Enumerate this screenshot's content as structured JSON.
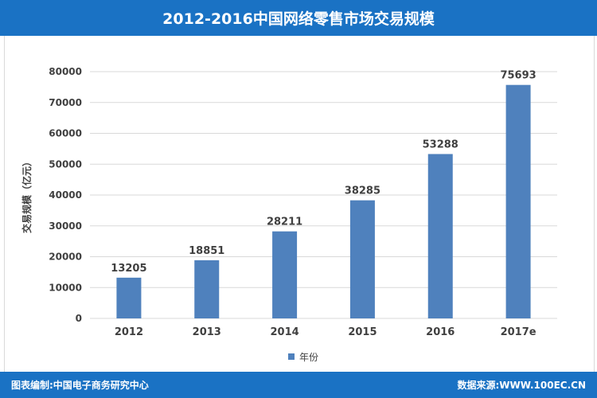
{
  "header": {
    "title": "2012-2016中国网络零售市场交易规模"
  },
  "footer": {
    "left": "图表编制:中国电子商务研究中心",
    "right": "数据来源:WWW.100EC.CN"
  },
  "colors": {
    "bar": "#4f81bd",
    "header": "#1a72c4",
    "grid": "#d9d9d9"
  },
  "chart_data": {
    "type": "bar",
    "title": "2012-2016中国网络零售市场交易规模",
    "categories": [
      "2012",
      "2013",
      "2014",
      "2015",
      "2016",
      "2017e"
    ],
    "series": [
      {
        "name": "年份",
        "values": [
          13205,
          18851,
          28211,
          38285,
          53288,
          75693
        ]
      }
    ],
    "ylabel": "交易规模（亿元）",
    "xlabel": "",
    "ylim": [
      0,
      80000
    ],
    "yticks": [
      0,
      10000,
      20000,
      30000,
      40000,
      50000,
      60000,
      70000,
      80000
    ],
    "grid": true,
    "legend": "bottom-center",
    "data_labels": true
  }
}
